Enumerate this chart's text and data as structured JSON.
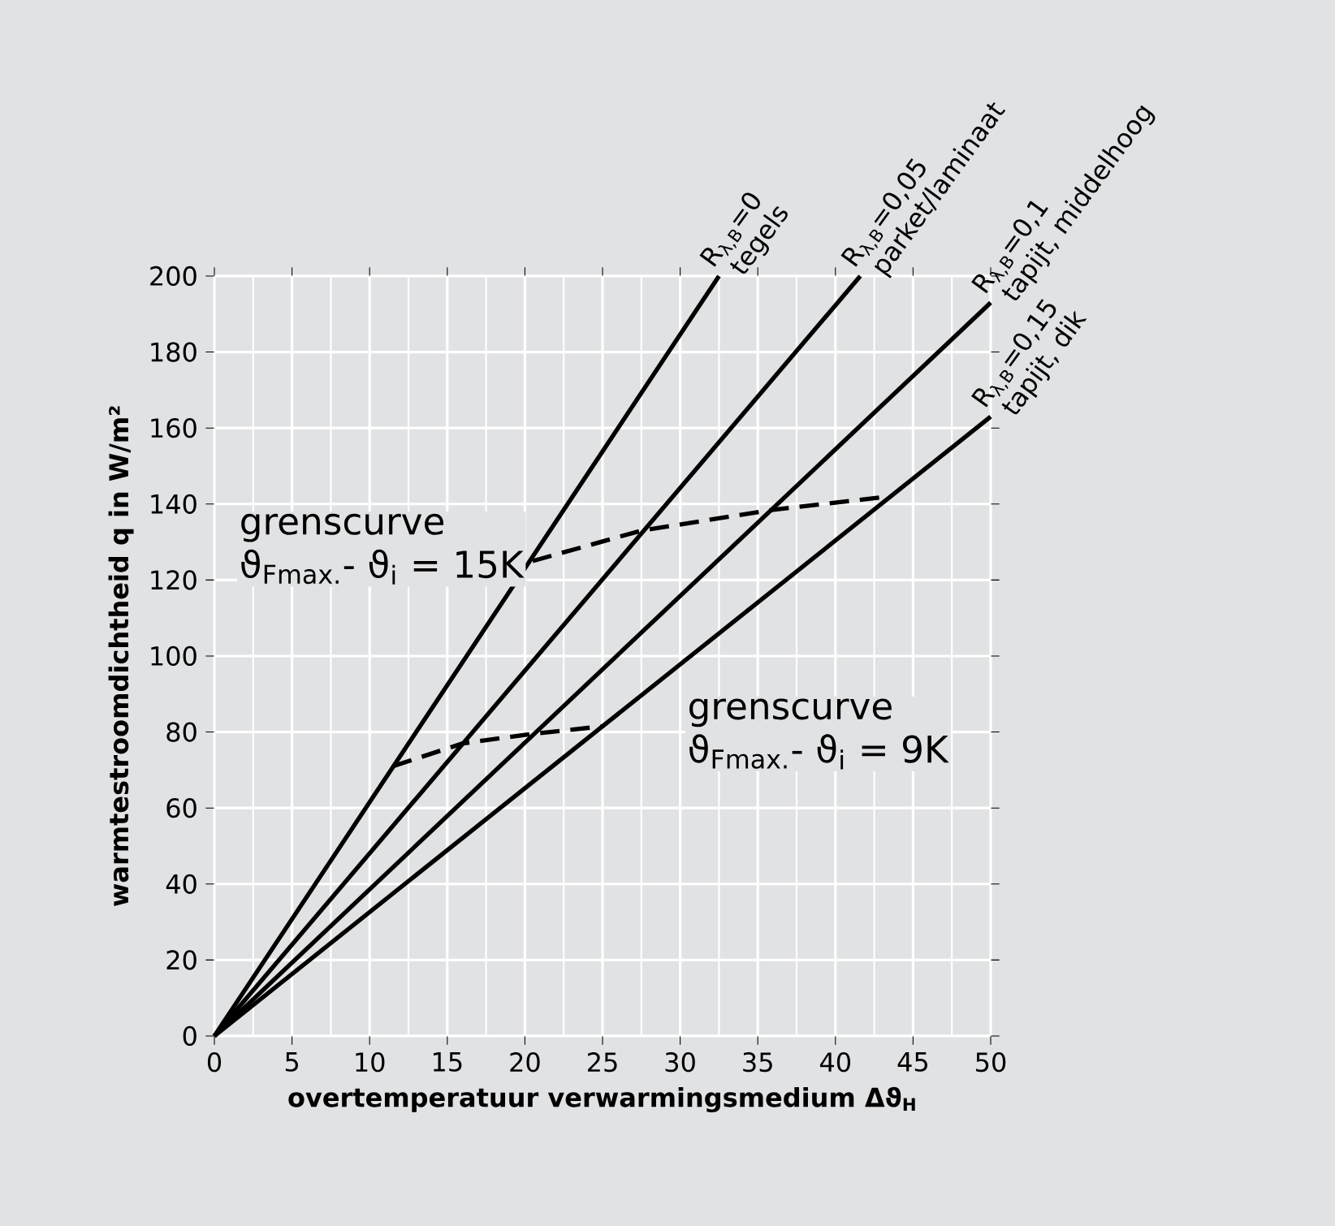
{
  "chart_data": {
    "type": "line",
    "xlabel": "overtemperatuur verwarmingsmedium Δϑ$_{H}$",
    "ylabel": "warmtestroomdichtheid q in W/m²",
    "series": [
      {
        "name": "R$_{λ,B}$=0",
        "color": "#000000",
        "x": [
          0,
          32.5
        ],
        "values": [
          0,
          200
        ]
      },
      {
        "name": "R$_{λ,B}$=0,05",
        "color": "#000000",
        "x": [
          0,
          41.6
        ],
        "values": [
          0,
          200
        ]
      },
      {
        "name": "R$_{λ,B}$=0,1",
        "color": "#000000",
        "x": [
          0,
          50
        ],
        "values": [
          0,
          193
        ]
      },
      {
        "name": "R$_{λ,B}$=0,15",
        "color": "#000000",
        "x": [
          0,
          50
        ],
        "values": [
          0,
          163
        ]
      },
      {
        "color": "#000000",
        "line_style": "dashed",
        "x": [
          20.5,
          27.5,
          36,
          43.5
        ],
        "values": [
          125,
          133,
          138.5,
          142
        ]
      },
      {
        "color": "#000000",
        "line_style": "dashed",
        "x": [
          11.5,
          16,
          20.5,
          25
        ],
        "values": [
          71,
          77,
          79.5,
          81.5
        ]
      }
    ],
    "annotations": [
      {
        "text": "tegels",
        "x": 32.5,
        "y": 200
      },
      {
        "text": "parket/laminaat",
        "x": 41.6,
        "y": 200
      },
      {
        "text": "tapijt, middelhoog",
        "x": 50,
        "y": 193
      },
      {
        "text": "tapijt, dik",
        "x": 50,
        "y": 163
      },
      {
        "text": "grenscurve",
        "x": 20.5,
        "y": 125
      },
      {
        "text": "ϑ$_{Fmax.}$- ϑ$_{i}$ = 15K",
        "x": 20.5,
        "y": 125
      },
      {
        "text": "grenscurve",
        "x": 25,
        "y": 81.5
      },
      {
        "text": "ϑ$_{Fmax.}$- ϑ$_{i}$ = 9K",
        "x": 25,
        "y": 81.5
      }
    ],
    "xlim": [
      0,
      50
    ],
    "ylim": [
      0,
      200
    ],
    "xticks": [
      0,
      5,
      10,
      15,
      20,
      25,
      30,
      35,
      40,
      45,
      50
    ],
    "yticks": [
      0,
      20,
      40,
      60,
      80,
      100,
      120,
      140,
      160,
      180,
      200
    ],
    "grid": true,
    "marker": "none",
    "line_style": "solid"
  }
}
